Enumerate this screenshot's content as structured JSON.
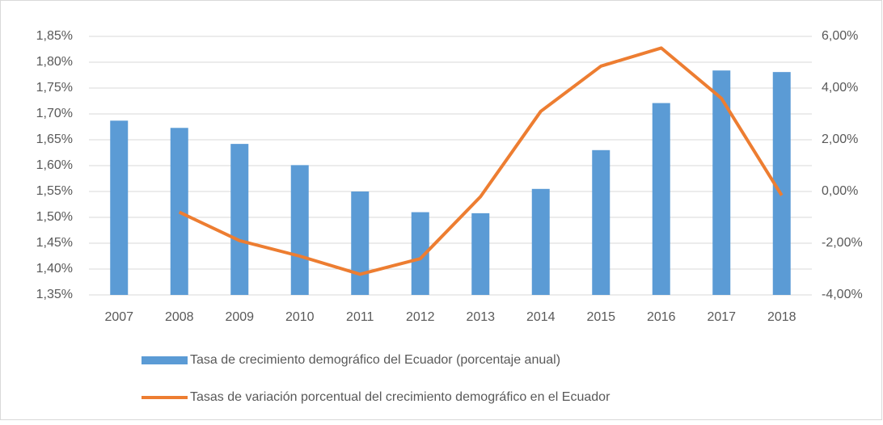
{
  "chart_data": {
    "type": "bar-line",
    "categories": [
      "2007",
      "2008",
      "2009",
      "2010",
      "2011",
      "2012",
      "2013",
      "2014",
      "2015",
      "2016",
      "2017",
      "2018"
    ],
    "series": [
      {
        "name": "Tasa de crecimiento demográfico del Ecuador (porcentaje anual)",
        "type": "bar",
        "color": "#5b9bd5",
        "values": [
          1.687,
          1.673,
          1.642,
          1.601,
          1.55,
          1.51,
          1.508,
          1.555,
          1.63,
          1.721,
          1.784,
          1.781
        ]
      },
      {
        "name": "Tasas de variación porcentual del crecimiento demográfico en el Ecuador",
        "type": "line",
        "axis": "y2",
        "color": "#ed7d31",
        "values": [
          null,
          -0.8,
          -1.9,
          -2.5,
          -3.2,
          -2.6,
          -0.2,
          3.1,
          4.85,
          5.55,
          3.6,
          -0.15
        ]
      }
    ],
    "ylim": [
      1.35,
      1.85
    ],
    "yticks": [
      {
        "value": 1.35,
        "label": "1,35%"
      },
      {
        "value": 1.4,
        "label": "1,40%"
      },
      {
        "value": 1.45,
        "label": "1,45%"
      },
      {
        "value": 1.5,
        "label": "1,50%"
      },
      {
        "value": 1.55,
        "label": "1,55%"
      },
      {
        "value": 1.6,
        "label": "1,60%"
      },
      {
        "value": 1.65,
        "label": "1,65%"
      },
      {
        "value": 1.7,
        "label": "1,70%"
      },
      {
        "value": 1.75,
        "label": "1,75%"
      },
      {
        "value": 1.8,
        "label": "1,80%"
      },
      {
        "value": 1.85,
        "label": "1,85%"
      }
    ],
    "y2lim": [
      -4,
      6
    ],
    "y2ticks": [
      {
        "value": -4,
        "label": "-4,00%"
      },
      {
        "value": -2,
        "label": "-2,00%"
      },
      {
        "value": 0,
        "label": "0,00%"
      },
      {
        "value": 2,
        "label": "2,00%"
      },
      {
        "value": 4,
        "label": "4,00%"
      },
      {
        "value": 6,
        "label": "6,00%"
      }
    ],
    "grid": true,
    "legend": "bottom"
  }
}
